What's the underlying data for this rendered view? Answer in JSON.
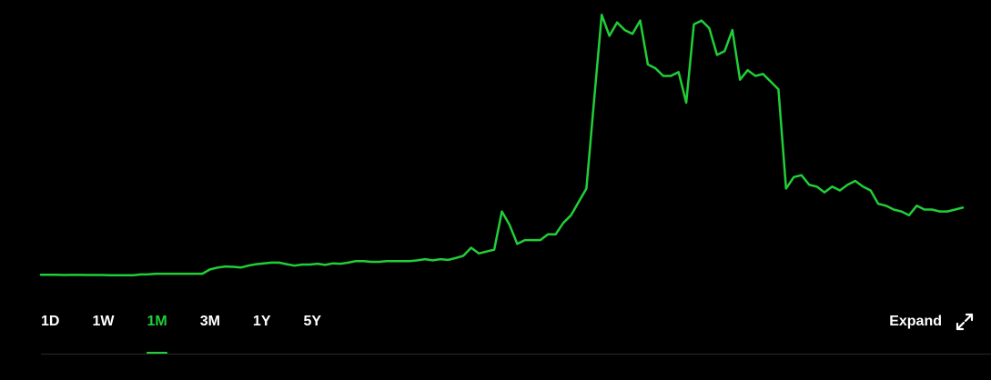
{
  "chart_data": {
    "type": "line",
    "series": [
      {
        "color": "#21ce38",
        "values": [
          0.4,
          0.4,
          0.4,
          0.35,
          0.38,
          0.38,
          0.35,
          0.35,
          0.35,
          0.3,
          0.3,
          0.32,
          0.32,
          0.5,
          0.55,
          0.7,
          0.7,
          0.7,
          0.7,
          0.7,
          0.68,
          0.7,
          1.8,
          2.3,
          2.6,
          2.5,
          2.3,
          2.8,
          3.2,
          3.4,
          3.6,
          3.6,
          3.2,
          2.8,
          3.1,
          3.1,
          3.3,
          3.0,
          3.4,
          3.3,
          3.6,
          4.0,
          4.0,
          3.8,
          3.8,
          4.0,
          4.0,
          4.0,
          4.0,
          4.2,
          4.5,
          4.2,
          4.5,
          4.3,
          4.8,
          5.4,
          7.5,
          6.0,
          6.5,
          7.0,
          17.0,
          13.5,
          8.5,
          9.5,
          9.5,
          9.5,
          11.0,
          11.0,
          14.0,
          16.0,
          19.5,
          23.0,
          46.0,
          68.5,
          63.0,
          66.5,
          64.5,
          63.5,
          67.0,
          55.5,
          54.5,
          52.5,
          52.5,
          53.5,
          45.5,
          66.0,
          67.0,
          65.0,
          58.0,
          59.0,
          64.5,
          51.5,
          54.0,
          52.5,
          53.0,
          51.0,
          49.0,
          23.0,
          26.0,
          26.5,
          24.0,
          23.5,
          22.0,
          23.5,
          22.5,
          24.0,
          25.0,
          23.5,
          22.5,
          19.0,
          18.5,
          17.5,
          17.0,
          16.0,
          18.5,
          17.5,
          17.5,
          17.0,
          17.0,
          17.5,
          18.0
        ]
      }
    ],
    "ylim": [
      0,
      70
    ],
    "grid": false,
    "legend": "none"
  },
  "ranges": {
    "tabs": [
      {
        "label": "1D"
      },
      {
        "label": "1W"
      },
      {
        "label": "1M",
        "active": true
      },
      {
        "label": "3M"
      },
      {
        "label": "1Y"
      },
      {
        "label": "5Y"
      }
    ]
  },
  "expand": {
    "label": "Expand",
    "icon": "expand-arrows-icon"
  },
  "colors": {
    "accent": "#21ce38",
    "background": "#000000",
    "text": "#ffffff"
  }
}
